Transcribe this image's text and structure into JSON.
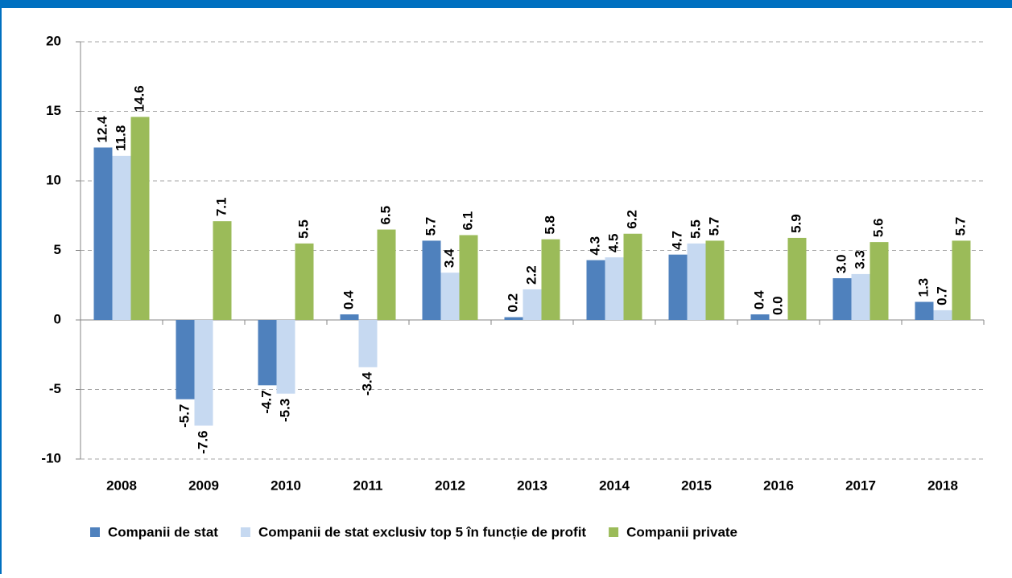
{
  "chart_data": {
    "type": "bar",
    "categories": [
      "2008",
      "2009",
      "2010",
      "2011",
      "2012",
      "2013",
      "2014",
      "2015",
      "2016",
      "2017",
      "2018"
    ],
    "series": [
      {
        "name": "Companii de stat",
        "color": "#4f81bd",
        "values": [
          12.4,
          -5.7,
          -4.7,
          0.4,
          5.7,
          0.2,
          4.3,
          4.7,
          0.4,
          3.0,
          1.3
        ],
        "value_labels": [
          "12.4",
          "-5.7",
          "-4.7",
          "0.4",
          "5.7",
          "0.2",
          "4.3",
          "4.7",
          "0.4",
          "3.0",
          "1.3"
        ]
      },
      {
        "name": "Companii de stat exclusiv top 5 în funcție de profit",
        "color": "#c6d9f1",
        "values": [
          11.8,
          -7.6,
          -5.3,
          -3.4,
          3.4,
          2.2,
          4.5,
          5.5,
          0.0,
          3.3,
          0.7
        ],
        "value_labels": [
          "11.8",
          "-7.6",
          "-5.3",
          "-3.4",
          "3.4",
          "2.2",
          "4.5",
          "5.5",
          "0.0",
          "3.3",
          "0.7"
        ]
      },
      {
        "name": "Companii private",
        "color": "#9bbb59",
        "values": [
          14.6,
          7.1,
          5.5,
          6.5,
          6.1,
          5.8,
          6.2,
          5.7,
          5.9,
          5.6,
          5.7
        ],
        "value_labels": [
          "14.6",
          "7.1",
          "5.5",
          "6.5",
          "6.1",
          "5.8",
          "6.2",
          "5.7",
          "5.9",
          "5.6",
          "5.7"
        ]
      }
    ],
    "ylim": [
      -10,
      20
    ],
    "yticks": [
      -10,
      -5,
      0,
      5,
      10,
      15,
      20
    ],
    "grid": true,
    "legend": "bottom"
  }
}
